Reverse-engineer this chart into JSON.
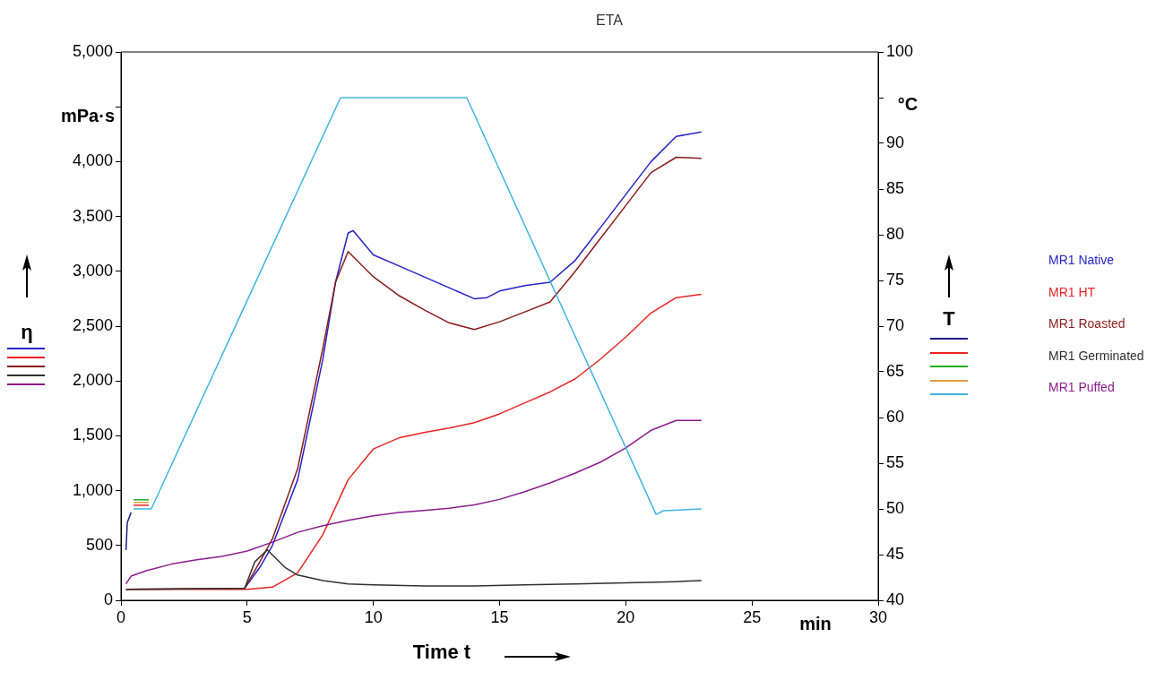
{
  "chart_data": {
    "type": "line",
    "title": "ETA",
    "xlabel": "Time t",
    "ylabel": "η",
    "y2label": "T",
    "annotations": [
      "mPa·s",
      "°C",
      "min"
    ],
    "xlim": [
      0,
      30
    ],
    "xticks": [
      0,
      5,
      10,
      15,
      20,
      25,
      30
    ],
    "ylim": [
      0,
      5000
    ],
    "yticks": [
      0,
      500,
      {
        "value": 1000,
        "label": "1,000"
      },
      {
        "value": 1500,
        "label": "1,500"
      },
      {
        "value": 2000,
        "label": "2,000"
      },
      {
        "value": 2500,
        "label": "2,500"
      },
      {
        "value": 3000,
        "label": "3,000"
      },
      {
        "value": 3500,
        "label": "3,500"
      },
      {
        "value": 4000,
        "label": "4,000"
      },
      {
        "value": 4500,
        "label": null
      },
      {
        "value": 5000,
        "label": "5,000"
      }
    ],
    "y2lim": [
      40,
      100
    ],
    "y2ticks": [
      40,
      45,
      50,
      55,
      60,
      65,
      70,
      75,
      80,
      85,
      90,
      {
        "value": 95,
        "label": null
      },
      100
    ],
    "grid": false,
    "legend": "right",
    "marker": "none",
    "line_style": "solid",
    "series": [
      {
        "name": "MR1 Native",
        "color": "#2424c8",
        "x": [
          4.9,
          5.5,
          6,
          7,
          8,
          8.5,
          9,
          9.2,
          10,
          11,
          12,
          13,
          14,
          14.5,
          15,
          16,
          17,
          18,
          19,
          20,
          21,
          22,
          23
        ],
        "values": [
          110,
          300,
          500,
          1100,
          2200,
          2900,
          3350,
          3370,
          3150,
          3050,
          2950,
          2850,
          2750,
          2760,
          2820,
          2870,
          2900,
          3100,
          3400,
          3700,
          4000,
          4230,
          4270
        ]
      },
      {
        "name": "MR1 HT",
        "color": "#e82424",
        "x": [
          0.2,
          5,
          6,
          7,
          8,
          9,
          10,
          11,
          12,
          13,
          14,
          15,
          16,
          17,
          18,
          19,
          20,
          21,
          22,
          23
        ],
        "values": [
          100,
          100,
          120,
          250,
          600,
          1100,
          1380,
          1480,
          1530,
          1570,
          1620,
          1700,
          1800,
          1900,
          2020,
          2200,
          2400,
          2620,
          2760,
          2790
        ]
      },
      {
        "name": "MR1 Roasted",
        "color": "#8c1c1c",
        "x": [
          0.2,
          4.9,
          5.5,
          6,
          7,
          8,
          8.5,
          9,
          10,
          11,
          12,
          13,
          14,
          15,
          16,
          17,
          18,
          19,
          20,
          21,
          22,
          23
        ],
        "values": [
          100,
          110,
          350,
          560,
          1200,
          2300,
          2900,
          3180,
          2950,
          2780,
          2650,
          2530,
          2470,
          2540,
          2630,
          2720,
          3000,
          3300,
          3600,
          3900,
          4040,
          4030
        ]
      },
      {
        "name": "MR1 Germinated",
        "color": "#303030",
        "x": [
          0.2,
          4.9,
          5.3,
          5.8,
          6.5,
          7,
          8,
          9,
          10,
          12,
          14,
          16,
          18,
          20,
          22,
          23
        ],
        "values": [
          100,
          110,
          350,
          460,
          300,
          230,
          180,
          150,
          140,
          130,
          130,
          140,
          150,
          160,
          170,
          180
        ]
      },
      {
        "name": "MR1 Puffed",
        "color": "#8c1c8c",
        "x": [
          0.2,
          0.4,
          1,
          2,
          3,
          4,
          5,
          6,
          7,
          8,
          9,
          10,
          11,
          12,
          13,
          14,
          15,
          16,
          17,
          18,
          19,
          20,
          21,
          22,
          23
        ],
        "values": [
          150,
          220,
          270,
          330,
          370,
          400,
          450,
          530,
          620,
          680,
          730,
          770,
          800,
          820,
          840,
          870,
          920,
          990,
          1070,
          1160,
          1260,
          1390,
          1550,
          1640,
          1640
        ]
      },
      {
        "axis": "y2",
        "color": "#1c1c8c",
        "x": [
          0.2,
          0.25,
          0.4
        ],
        "values": [
          45.5,
          48.5,
          49.6
        ]
      },
      {
        "axis": "y2",
        "color": "#e82424",
        "x": [
          0.5,
          1.1
        ],
        "values": [
          50.4,
          50.4
        ]
      },
      {
        "axis": "y2",
        "color": "#20b020",
        "x": [
          0.5,
          1.1
        ],
        "values": [
          51,
          51
        ]
      },
      {
        "axis": "y2",
        "color": "#e0a040",
        "x": [
          0.5,
          1.1
        ],
        "values": [
          50.7,
          50.7
        ]
      },
      {
        "axis": "y2",
        "color": "#40b4e0",
        "x": [
          0.5,
          1.2,
          8.7,
          13.7,
          21.2,
          21.5,
          23
        ],
        "values": [
          50,
          50,
          95,
          95,
          49.4,
          49.8,
          50
        ]
      }
    ]
  }
}
